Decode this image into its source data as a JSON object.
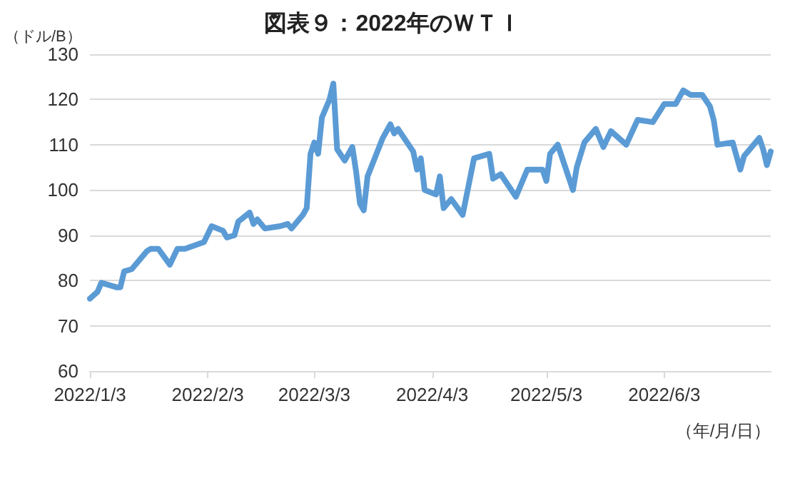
{
  "chart_data": {
    "type": "line",
    "title": "図表９：2022年のＷＴＩ",
    "ylabel": "（ドル/B）",
    "xlabel": "（年/月/日）",
    "x": [
      "2022-01-03",
      "2022-01-05",
      "2022-01-06",
      "2022-01-10",
      "2022-01-11",
      "2022-01-12",
      "2022-01-14",
      "2022-01-18",
      "2022-01-19",
      "2022-01-21",
      "2022-01-24",
      "2022-01-26",
      "2022-01-28",
      "2022-02-02",
      "2022-02-04",
      "2022-02-07",
      "2022-02-08",
      "2022-02-10",
      "2022-02-11",
      "2022-02-14",
      "2022-02-15",
      "2022-02-16",
      "2022-02-18",
      "2022-02-22",
      "2022-02-24",
      "2022-02-25",
      "2022-02-28",
      "2022-03-01",
      "2022-03-02",
      "2022-03-03",
      "2022-03-04",
      "2022-03-05",
      "2022-03-07",
      "2022-03-08",
      "2022-03-09",
      "2022-03-11",
      "2022-03-13",
      "2022-03-14",
      "2022-03-15",
      "2022-03-16",
      "2022-03-17",
      "2022-03-21",
      "2022-03-23",
      "2022-03-24",
      "2022-03-25",
      "2022-03-29",
      "2022-03-30",
      "2022-03-31",
      "2022-04-01",
      "2022-04-04",
      "2022-04-05",
      "2022-04-06",
      "2022-04-08",
      "2022-04-11",
      "2022-04-14",
      "2022-04-18",
      "2022-04-19",
      "2022-04-21",
      "2022-04-25",
      "2022-04-28",
      "2022-05-02",
      "2022-05-03",
      "2022-05-04",
      "2022-05-06",
      "2022-05-10",
      "2022-05-11",
      "2022-05-13",
      "2022-05-16",
      "2022-05-18",
      "2022-05-20",
      "2022-05-24",
      "2022-05-27",
      "2022-05-31",
      "2022-06-03",
      "2022-06-06",
      "2022-06-08",
      "2022-06-10",
      "2022-06-13",
      "2022-06-15",
      "2022-06-16",
      "2022-06-17",
      "2022-06-21",
      "2022-06-23",
      "2022-06-24",
      "2022-06-28",
      "2022-06-29",
      "2022-06-30",
      "2022-07-01"
    ],
    "series": [
      {
        "color": "#5b9bd5",
        "values": [
          76,
          77.5,
          79.5,
          78.5,
          78.5,
          82,
          82.5,
          86.5,
          87,
          87,
          83.5,
          87,
          87,
          88.5,
          92,
          91,
          89.5,
          90,
          93,
          95,
          92.5,
          93.5,
          91.5,
          92,
          92.5,
          91.5,
          94.5,
          96,
          108,
          110.5,
          108,
          116,
          120,
          123.5,
          109,
          106.5,
          109.5,
          104,
          97,
          95.5,
          103,
          111.5,
          114.5,
          112.5,
          113.5,
          108.5,
          104.5,
          107,
          100,
          99,
          103,
          96,
          98,
          94.5,
          107,
          108,
          102.5,
          103.5,
          98.5,
          104.5,
          104.5,
          102,
          108,
          110,
          100,
          105,
          110.5,
          113.5,
          109.5,
          113,
          110,
          115.5,
          115,
          119,
          119,
          122,
          121,
          121,
          118.5,
          115.5,
          110,
          110.5,
          104.5,
          107.5,
          111.5,
          109,
          105.5,
          108.5
        ]
      }
    ],
    "xlim": [
      "2022-01-03",
      "2022-07-01"
    ],
    "xticks": [
      {
        "value": "2022-01-03",
        "label": "2022/1/3"
      },
      {
        "value": "2022-02-03",
        "label": "2022/2/3"
      },
      {
        "value": "2022-03-03",
        "label": "2022/3/3"
      },
      {
        "value": "2022-04-03",
        "label": "2022/4/3"
      },
      {
        "value": "2022-05-03",
        "label": "2022/5/3"
      },
      {
        "value": "2022-06-03",
        "label": "2022/6/3"
      }
    ],
    "ylim": [
      60,
      130
    ],
    "yticks": [
      60,
      70,
      80,
      90,
      100,
      110,
      120,
      130
    ],
    "grid": "y",
    "marker": "none",
    "line_style": "solid"
  }
}
